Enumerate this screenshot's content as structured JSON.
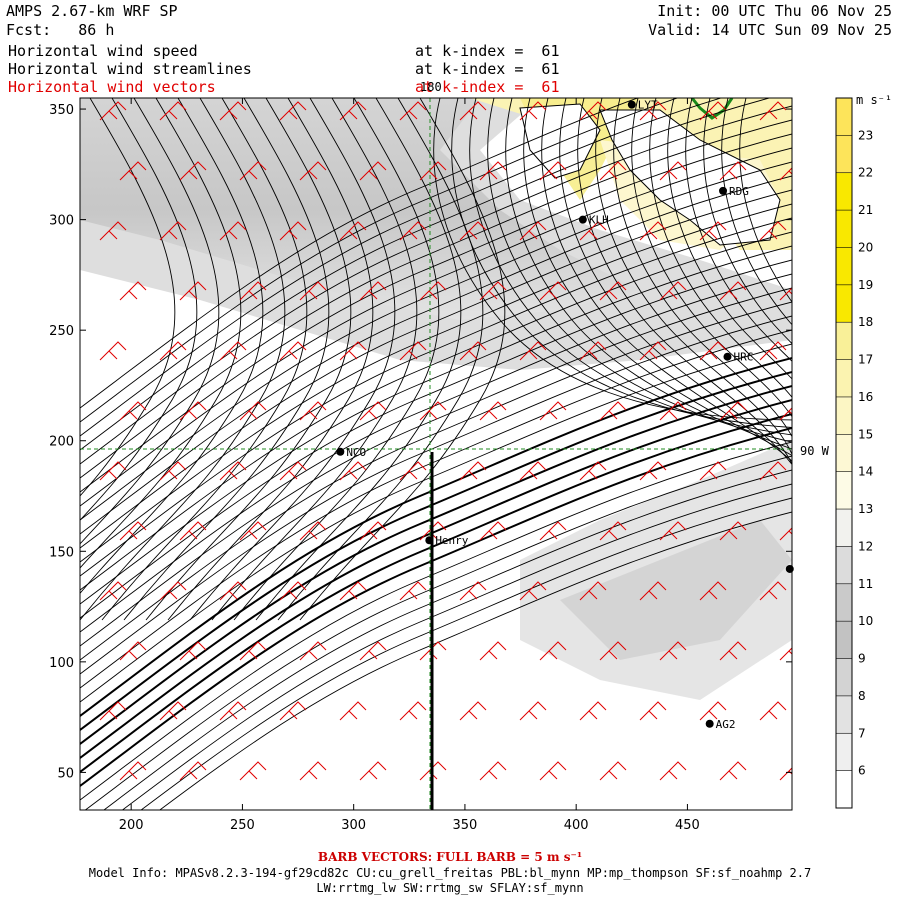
{
  "header": {
    "model": "AMPS 2.67-km WRF SP",
    "fcst": "Fcst:   86 h",
    "init": "Init: 00 UTC Thu 06 Nov 25",
    "valid": "Valid: 14 UTC Sun 09 Nov 25",
    "fields": [
      {
        "name": "Horizontal wind speed",
        "level": "at k-index =  61",
        "color": "#000000"
      },
      {
        "name": "Horizontal wind streamlines",
        "level": "at k-index =  61",
        "color": "#000000"
      },
      {
        "name": "Horizontal wind vectors",
        "level": "at k-index =  61",
        "color": "#e00000"
      }
    ]
  },
  "axes": {
    "x_ticks": [
      "200",
      "250",
      "300",
      "350",
      "400",
      "450"
    ],
    "y_ticks": [
      "50",
      "100",
      "150",
      "200",
      "250",
      "300",
      "350"
    ],
    "xlim": [
      177,
      497
    ],
    "ylim": [
      33,
      355
    ],
    "meridian_label": "180",
    "parallel_label": "90 W"
  },
  "stations": [
    {
      "name": "LYT",
      "x": 425,
      "y": 352
    },
    {
      "name": "RDG",
      "x": 466,
      "y": 313
    },
    {
      "name": "KLH",
      "x": 403,
      "y": 300
    },
    {
      "name": "HRC",
      "x": 468,
      "y": 238
    },
    {
      "name": "NCO",
      "x": 294,
      "y": 195
    },
    {
      "name": "Henry",
      "x": 334,
      "y": 155
    },
    {
      "name": "AG2",
      "x": 460,
      "y": 72
    },
    {
      "name": "",
      "x": 496,
      "y": 142
    }
  ],
  "colorbar": {
    "unit": "m s⁻¹",
    "labels": [
      "23",
      "22",
      "21",
      "20",
      "19",
      "18",
      "17",
      "16",
      "15",
      "14",
      "13",
      "12",
      "11",
      "10",
      "9",
      "8",
      "7",
      "6"
    ],
    "colors": [
      "#fde45a",
      "#fde45a",
      "#f9e800",
      "#f9e800",
      "#f9e800",
      "#f9e800",
      "#f9f098",
      "#fbf3b0",
      "#fcf6c4",
      "#fdf8d4",
      "#fdfbe6",
      "#f2f2ee",
      "#dcdcdc",
      "#cacaca",
      "#c2c2c2",
      "#d3d3d3",
      "#e2e2e2",
      "#efefef",
      "#ffffff"
    ]
  },
  "footer": {
    "barb_note": "BARB VECTORS: FULL BARB = 5 m s⁻¹",
    "model_info": "Model Info: MPASv8.2.3-194-gf29cd82c CU:cu_grell_freitas PBL:bl_mynn MP:mp_thompson SF:sf_noahmp 2.7",
    "model_info2": "LW:rrtmg_lw SW:rrtmg_sw SFLAY:sf_mynn"
  },
  "colors": {
    "barb": "#e00000",
    "gridline": "#228b22",
    "coast": "#1a8a1a"
  }
}
